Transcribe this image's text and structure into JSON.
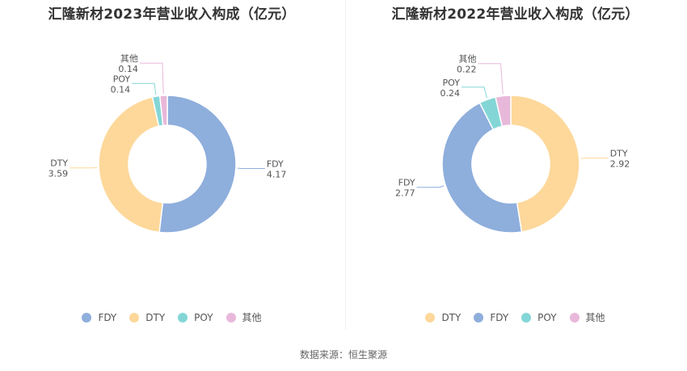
{
  "chart_data": [
    {
      "type": "pie",
      "title": "汇隆新材2023年营业收入构成（亿元）",
      "slices": [
        {
          "label": "FDY",
          "value": 4.17,
          "value_text": "4.17",
          "color": "#8eaedc"
        },
        {
          "label": "DTY",
          "value": 3.59,
          "value_text": "3.59",
          "color": "#fdd89a"
        },
        {
          "label": "POY",
          "value": 0.14,
          "value_text": "0.14",
          "color": "#84d6d6"
        },
        {
          "label": "其他",
          "value": 0.14,
          "value_text": "0.14",
          "color": "#e8b8da"
        }
      ],
      "legend": [
        "FDY",
        "DTY",
        "POY",
        "其他"
      ],
      "legend_position": "bottom",
      "donut": true
    },
    {
      "type": "pie",
      "title": "汇隆新材2022年营业收入构成（亿元）",
      "slices": [
        {
          "label": "DTY",
          "value": 2.92,
          "value_text": "2.92",
          "color": "#fdd89a"
        },
        {
          "label": "FDY",
          "value": 2.77,
          "value_text": "2.77",
          "color": "#8eaedc"
        },
        {
          "label": "POY",
          "value": 0.24,
          "value_text": "0.24",
          "color": "#84d6d6"
        },
        {
          "label": "其他",
          "value": 0.22,
          "value_text": "0.22",
          "color": "#e8b8da"
        }
      ],
      "legend": [
        "DTY",
        "FDY",
        "POY",
        "其他"
      ],
      "legend_position": "bottom",
      "donut": true
    }
  ],
  "source": "数据来源：恒生聚源"
}
